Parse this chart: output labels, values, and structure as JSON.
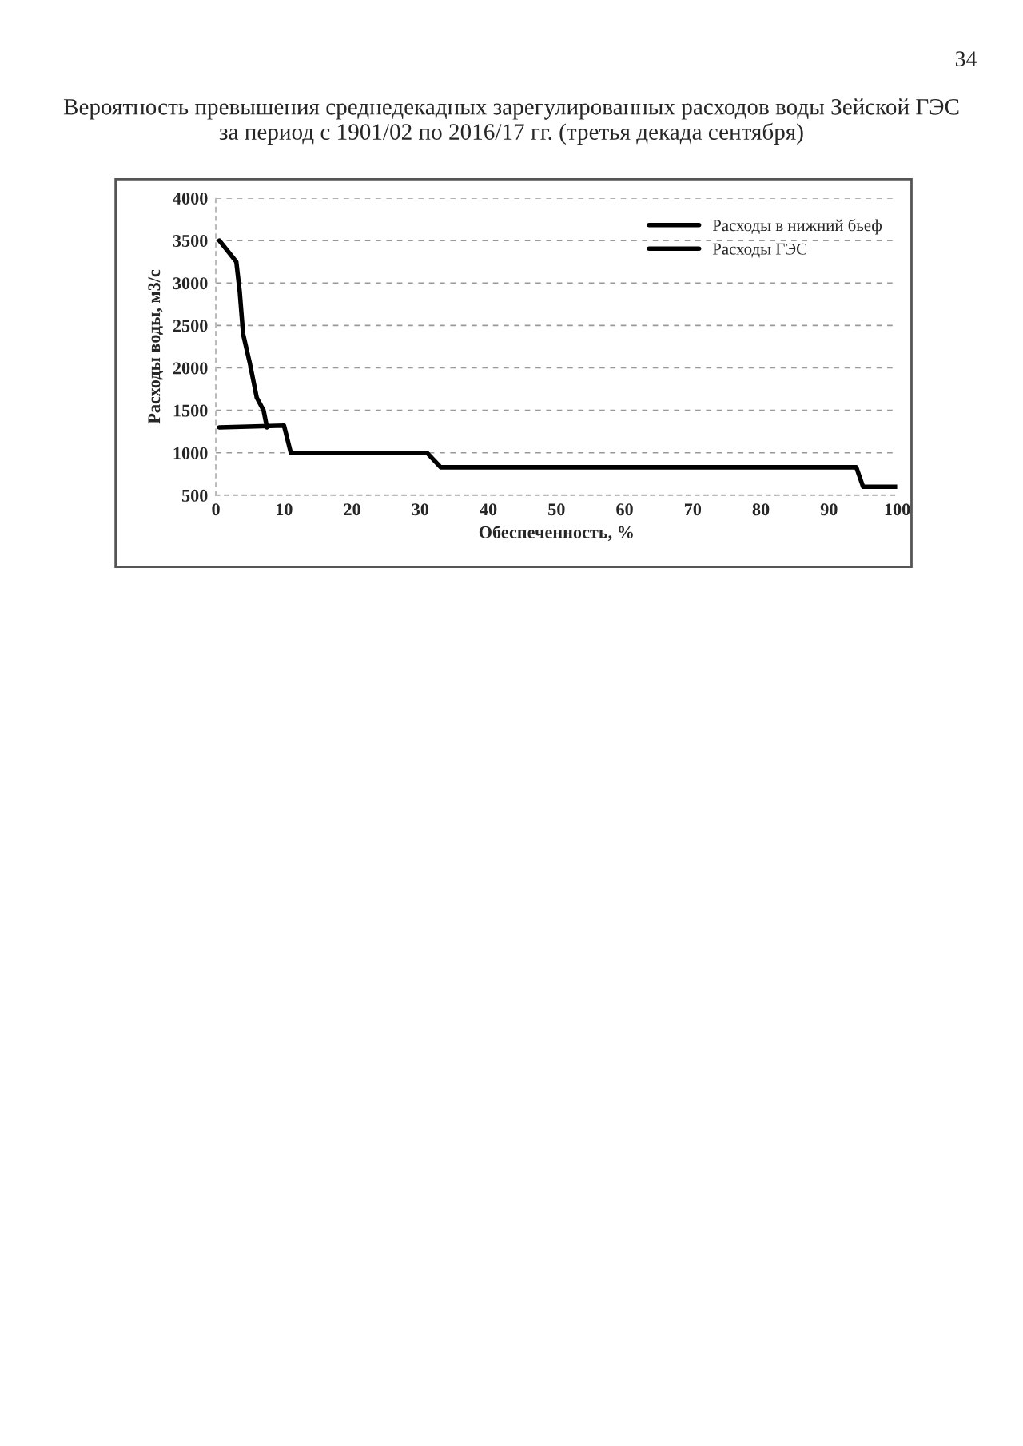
{
  "chart_data": {
    "type": "line",
    "title": "Вероятность превышения среднедекадных зарегулированных расходов воды Зейской ГЭС\nза период с 1901/02 по 2016/17 гг. (третья декада сентября)",
    "xlabel": "Обеспеченность, %",
    "ylabel": "Расходы воды, м3/с",
    "annotations": [
      "34"
    ],
    "series": [
      {
        "name": "Расходы в нижний бьеф",
        "color": "#000000",
        "x": [
          0.5,
          2,
          3,
          3.5,
          4,
          5,
          6,
          7,
          7.5
        ],
        "values": [
          3500,
          3350,
          3250,
          2900,
          2400,
          2050,
          1650,
          1500,
          1300
        ]
      },
      {
        "name": "Расходы ГЭС",
        "color": "#000000",
        "x": [
          0.5,
          10,
          11,
          31,
          33,
          94,
          95,
          100
        ],
        "values": [
          1300,
          1320,
          1000,
          1000,
          830,
          830,
          600,
          600
        ]
      }
    ],
    "xlim": [
      0,
      100
    ],
    "xticks": [
      0,
      10,
      20,
      30,
      40,
      50,
      60,
      70,
      80,
      90,
      100
    ],
    "ylim": [
      500,
      4000
    ],
    "yticks": [
      500,
      1000,
      1500,
      2000,
      2500,
      3000,
      3500,
      4000
    ],
    "grid": "y",
    "legend": "top right",
    "line_style": "solid",
    "marker": "none"
  }
}
